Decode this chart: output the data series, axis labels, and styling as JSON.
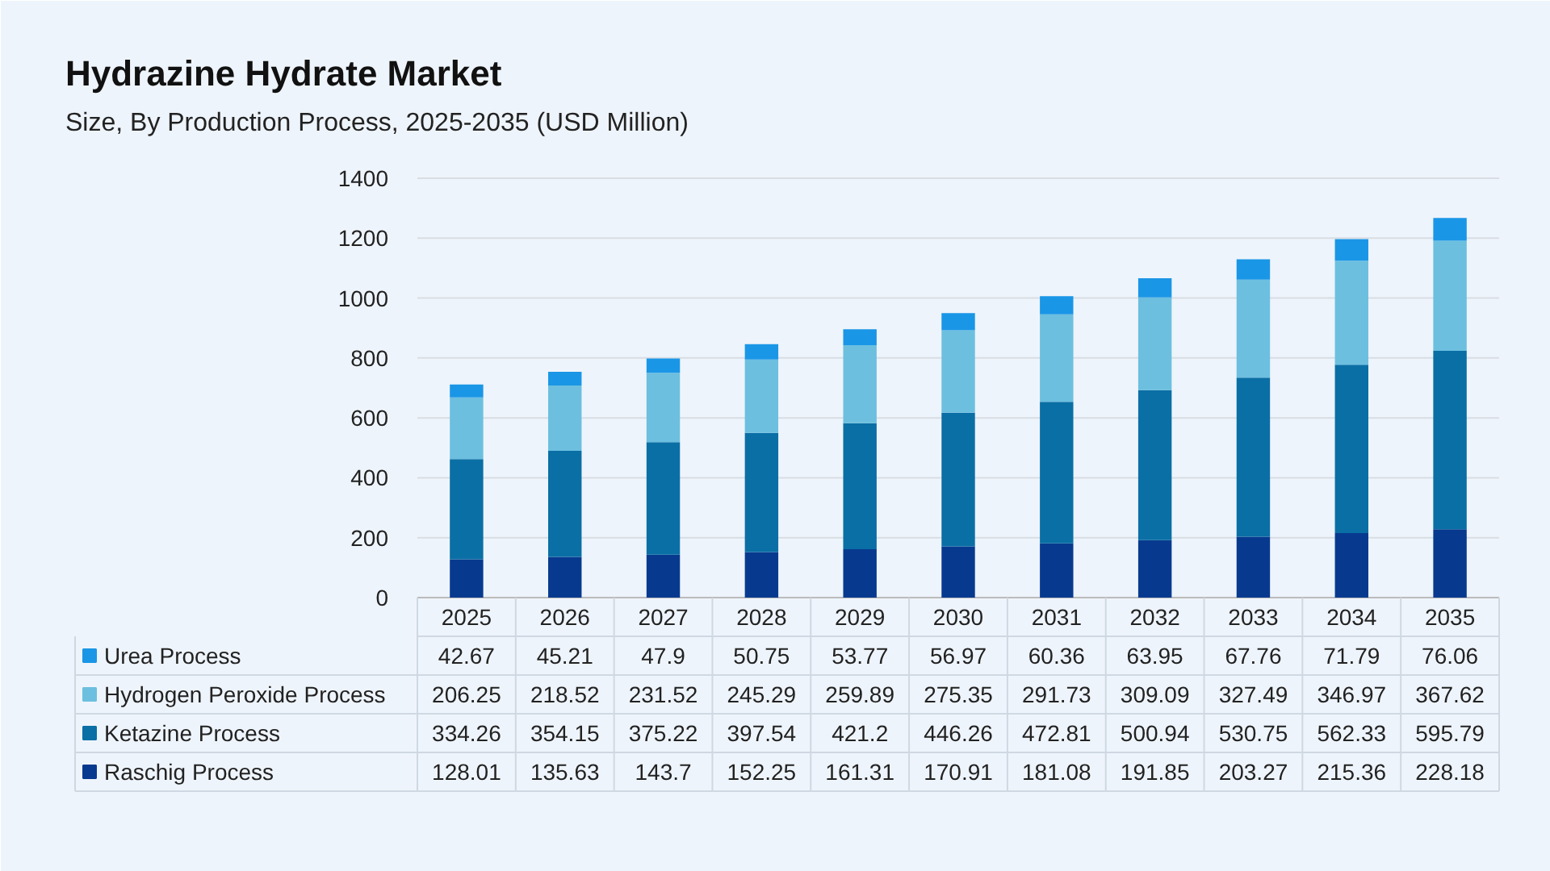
{
  "chart_data": {
    "type": "bar",
    "title": "Hydrazine Hydrate Market",
    "subtitle": "Size, By Production Process, 2025-2035 (USD Million)",
    "categories": [
      "2025",
      "2026",
      "2027",
      "2028",
      "2029",
      "2030",
      "2031",
      "2032",
      "2033",
      "2034",
      "2035"
    ],
    "stacked": true,
    "ylim": [
      0,
      1400
    ],
    "yticks": [
      0,
      200,
      400,
      600,
      800,
      1000,
      1200,
      1400
    ],
    "grid": "y",
    "legend": "bottom",
    "data_labels": true,
    "series": [
      {
        "name": "Raschig Process",
        "color": "#073a8f",
        "values": [
          128.01,
          135.63,
          143.7,
          152.25,
          161.31,
          170.91,
          181.08,
          191.85,
          203.27,
          215.36,
          228.18
        ]
      },
      {
        "name": "Ketazine Process",
        "color": "#0a6fa5",
        "values": [
          334.26,
          354.15,
          375.22,
          397.54,
          421.2,
          446.26,
          472.81,
          500.94,
          530.75,
          562.33,
          595.79
        ]
      },
      {
        "name": "Hydrogen Peroxide Process",
        "color": "#6cbfdf",
        "values": [
          206.25,
          218.52,
          231.52,
          245.29,
          259.89,
          275.35,
          291.73,
          309.09,
          327.49,
          346.97,
          367.62
        ]
      },
      {
        "name": "Urea Process",
        "color": "#1a96e6",
        "values": [
          42.67,
          45.21,
          47.9,
          50.75,
          53.77,
          56.97,
          60.36,
          63.95,
          67.76,
          71.79,
          76.06
        ]
      }
    ]
  }
}
